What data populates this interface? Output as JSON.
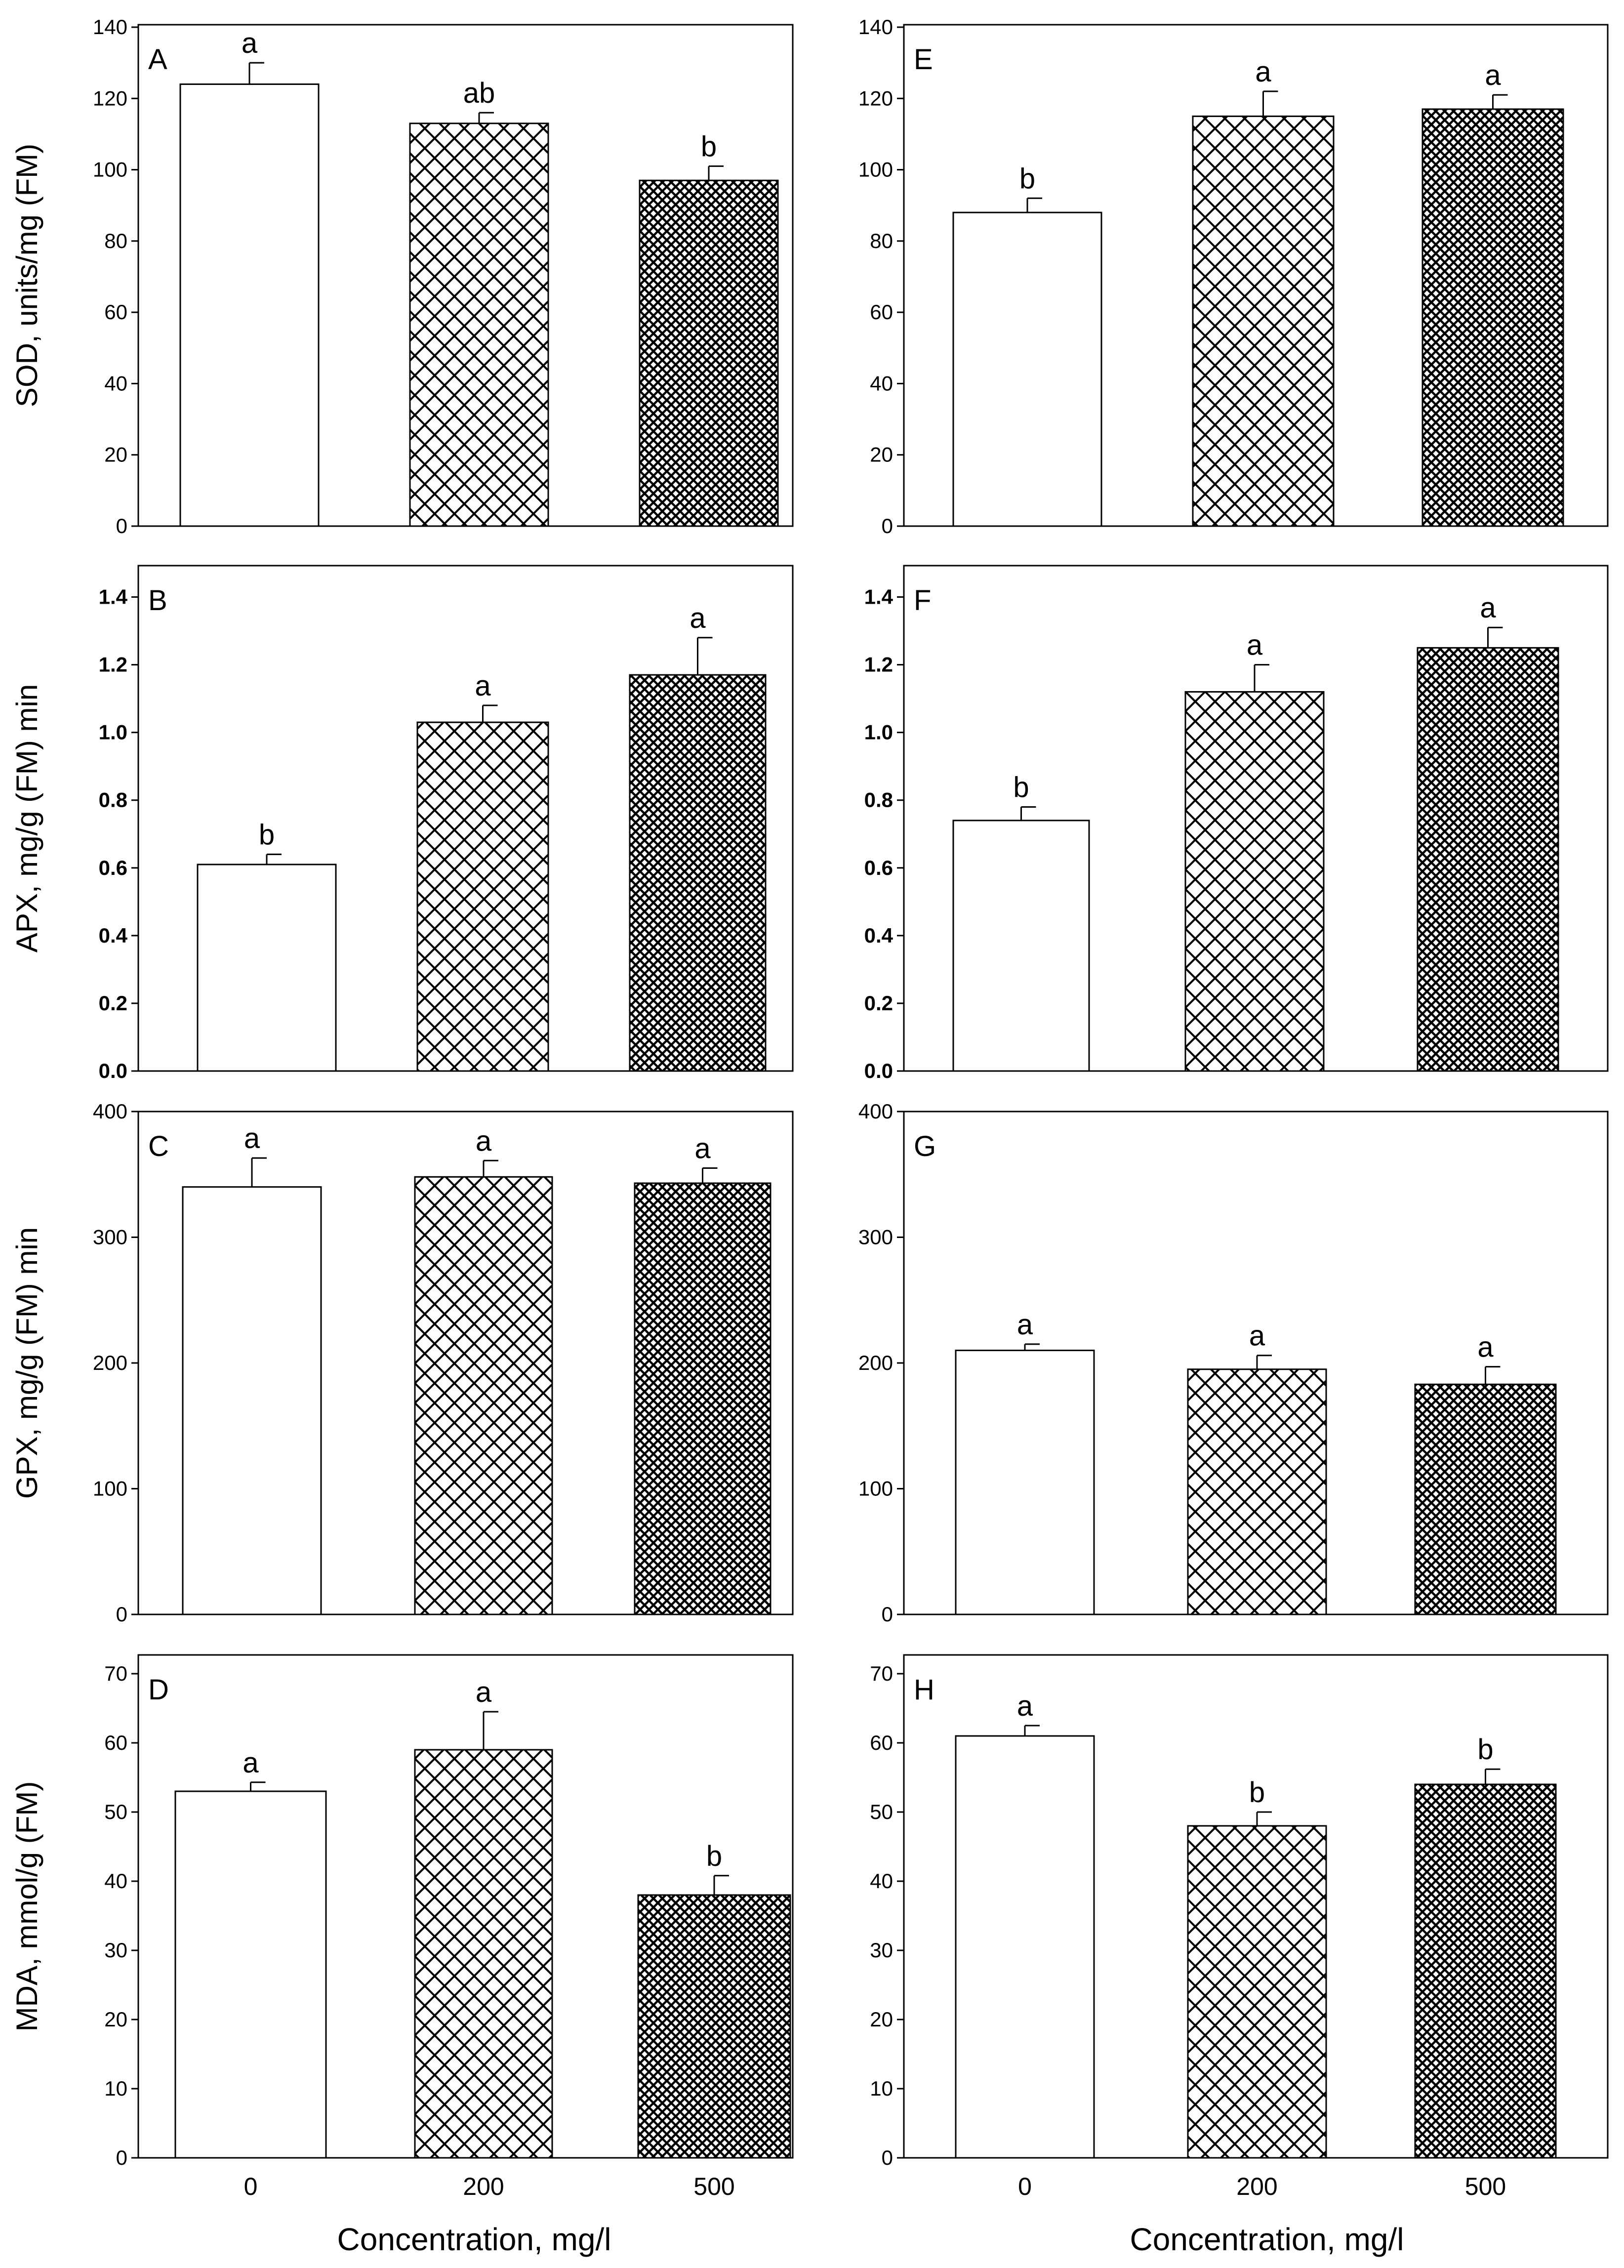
{
  "figure": {
    "xlabel": "Concentration, mg/l"
  },
  "chart_data": [
    {
      "panel": "A",
      "type": "bar",
      "ylabel": "SOD, units/mg (FM)",
      "categories": [
        "0",
        "200",
        "500"
      ],
      "values": [
        124,
        113,
        97
      ],
      "errors": [
        6,
        3,
        4
      ],
      "letters": [
        "a",
        "ab",
        "b"
      ],
      "ylim": [
        0,
        140
      ],
      "yticks": [
        "0",
        "20",
        "40",
        "60",
        "80",
        "100",
        "120",
        "140"
      ],
      "patterns": [
        "none",
        "cross",
        "dense"
      ]
    },
    {
      "panel": "B",
      "type": "bar",
      "ylabel": "APX, mg/g (FM) min",
      "categories": [
        "0",
        "200",
        "500"
      ],
      "values": [
        0.61,
        1.03,
        1.17
      ],
      "errors": [
        0.03,
        0.05,
        0.11
      ],
      "letters": [
        "b",
        "a",
        "a"
      ],
      "ylim": [
        0,
        1.5
      ],
      "yticks": [
        "0.0",
        "0.2",
        "0.4",
        "0.6",
        "0.8",
        "1.0",
        "1.2",
        "1.4"
      ],
      "patterns": [
        "none",
        "cross",
        "dense"
      ]
    },
    {
      "panel": "C",
      "type": "bar",
      "ylabel": "GPX, mg/g (FM) min",
      "categories": [
        "0",
        "200",
        "500"
      ],
      "values": [
        340,
        348,
        343
      ],
      "errors": [
        23,
        13,
        12
      ],
      "letters": [
        "a",
        "a",
        "a"
      ],
      "ylim": [
        0,
        400
      ],
      "yticks": [
        "0",
        "100",
        "200",
        "300",
        "400"
      ],
      "patterns": [
        "none",
        "cross",
        "dense"
      ]
    },
    {
      "panel": "D",
      "type": "bar",
      "ylabel": "MDA, mmol/g (FM)",
      "categories": [
        "0",
        "200",
        "500"
      ],
      "values": [
        53,
        59,
        38
      ],
      "errors": [
        1.3,
        5.5,
        2.8
      ],
      "letters": [
        "a",
        "a",
        "b"
      ],
      "ylim": [
        0,
        70
      ],
      "yticks": [
        "0",
        "10",
        "20",
        "30",
        "40",
        "50",
        "60",
        "70"
      ],
      "patterns": [
        "none",
        "cross",
        "dense"
      ]
    },
    {
      "panel": "E",
      "type": "bar",
      "ylabel": "",
      "categories": [
        "0",
        "200",
        "500"
      ],
      "values": [
        88,
        115,
        117
      ],
      "errors": [
        4,
        7,
        4
      ],
      "letters": [
        "b",
        "a",
        "a"
      ],
      "ylim": [
        0,
        140
      ],
      "yticks": [
        "0",
        "20",
        "40",
        "60",
        "80",
        "100",
        "120",
        "140"
      ],
      "patterns": [
        "none",
        "cross",
        "dense"
      ]
    },
    {
      "panel": "F",
      "type": "bar",
      "ylabel": "",
      "categories": [
        "0",
        "200",
        "500"
      ],
      "values": [
        0.74,
        1.12,
        1.25
      ],
      "errors": [
        0.04,
        0.08,
        0.06
      ],
      "letters": [
        "b",
        "a",
        "a"
      ],
      "ylim": [
        0,
        1.5
      ],
      "yticks": [
        "0.0",
        "0.2",
        "0.4",
        "0.6",
        "0.8",
        "1.0",
        "1.2",
        "1.4"
      ],
      "patterns": [
        "none",
        "cross",
        "dense"
      ]
    },
    {
      "panel": "G",
      "type": "bar",
      "ylabel": "",
      "categories": [
        "0",
        "200",
        "500"
      ],
      "values": [
        210,
        195,
        183
      ],
      "errors": [
        5,
        11,
        14
      ],
      "letters": [
        "a",
        "a",
        "a"
      ],
      "ylim": [
        0,
        400
      ],
      "yticks": [
        "0",
        "100",
        "200",
        "300",
        "400"
      ],
      "patterns": [
        "none",
        "cross",
        "dense"
      ]
    },
    {
      "panel": "H",
      "type": "bar",
      "ylabel": "",
      "categories": [
        "0",
        "200",
        "500"
      ],
      "values": [
        61,
        48,
        54
      ],
      "errors": [
        1.5,
        2,
        2.2
      ],
      "letters": [
        "a",
        "b",
        "b"
      ],
      "ylim": [
        0,
        70
      ],
      "yticks": [
        "0",
        "10",
        "20",
        "30",
        "40",
        "50",
        "60",
        "70"
      ],
      "patterns": [
        "none",
        "cross",
        "dense"
      ]
    }
  ]
}
